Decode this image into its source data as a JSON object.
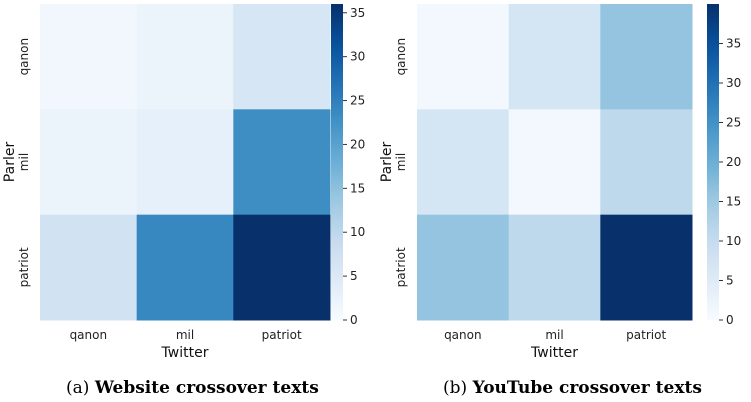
{
  "chart_data": [
    {
      "type": "heatmap",
      "xlabel": "Twitter",
      "ylabel": "Parler",
      "x_categories": [
        "qanon",
        "mil",
        "patriot"
      ],
      "y_categories": [
        "qanon",
        "mil",
        "patriot"
      ],
      "values": [
        [
          1,
          2,
          6
        ],
        [
          2,
          3,
          23
        ],
        [
          7,
          24,
          36
        ]
      ],
      "colorbar_range": [
        0,
        36
      ],
      "colorbar_ticks": [
        0,
        5,
        10,
        15,
        20,
        25,
        30,
        35
      ],
      "colormap": "Blues",
      "caption_tag": "(a)",
      "caption_title": "Website crossover texts"
    },
    {
      "type": "heatmap",
      "xlabel": "Twitter",
      "ylabel": "Parler",
      "x_categories": [
        "qanon",
        "mil",
        "patriot"
      ],
      "y_categories": [
        "qanon",
        "mil",
        "patriot"
      ],
      "values": [
        [
          1,
          7,
          16
        ],
        [
          7,
          1,
          11
        ],
        [
          16,
          11,
          40
        ]
      ],
      "colorbar_range": [
        0,
        40
      ],
      "colorbar_ticks": [
        0,
        5,
        10,
        15,
        20,
        25,
        30,
        35
      ],
      "colormap": "Blues",
      "caption_tag": "(b)",
      "caption_title": "YouTube crossover texts"
    }
  ],
  "colors": {
    "low": "#f7fbff",
    "high": "#08306b"
  }
}
